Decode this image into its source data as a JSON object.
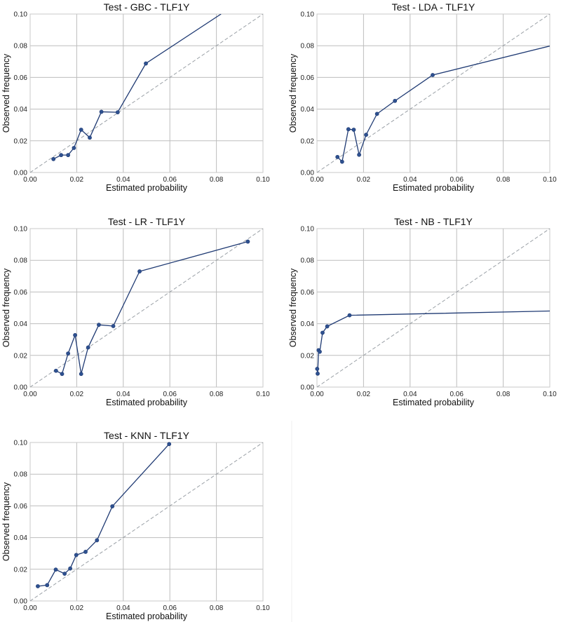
{
  "chart_data": [
    {
      "type": "line",
      "title": "Test - GBC - TLF1Y",
      "xlabel": "Estimated probability",
      "ylabel": "Observed frequency",
      "xlim": [
        0,
        0.1
      ],
      "ylim": [
        0,
        0.1
      ],
      "xticks": [
        "0.00",
        "0.02",
        "0.04",
        "0.06",
        "0.08",
        "0.10"
      ],
      "yticks": [
        "0.00",
        "0.02",
        "0.04",
        "0.06",
        "0.08",
        "0.10"
      ],
      "reference_line": "perfectly calibrated diagonal (dashed)",
      "grid": true,
      "series": [
        {
          "name": "GBC",
          "x": [
            0.01,
            0.0133,
            0.0163,
            0.0188,
            0.0219,
            0.0256,
            0.0306,
            0.0376,
            0.0497
          ],
          "y": [
            0.0085,
            0.011,
            0.011,
            0.0155,
            0.027,
            0.022,
            0.0383,
            0.038,
            0.0688
          ]
        }
      ],
      "series_line_extension": {
        "x": 0.082,
        "y": 0.1
      }
    },
    {
      "type": "line",
      "title": "Test - LDA - TLF1Y",
      "xlabel": "Estimated probability",
      "ylabel": "Observed frequency",
      "xlim": [
        0,
        0.1
      ],
      "ylim": [
        0,
        0.1
      ],
      "xticks": [
        "0.00",
        "0.02",
        "0.04",
        "0.06",
        "0.08",
        "0.10"
      ],
      "yticks": [
        "0.00",
        "0.02",
        "0.04",
        "0.06",
        "0.08",
        "0.10"
      ],
      "reference_line": "perfectly calibrated diagonal (dashed)",
      "grid": true,
      "series": [
        {
          "name": "LDA",
          "x": [
            0.0088,
            0.0108,
            0.0135,
            0.0158,
            0.0181,
            0.0211,
            0.0258,
            0.0335,
            0.0497
          ],
          "y": [
            0.0098,
            0.0068,
            0.0273,
            0.027,
            0.0112,
            0.0238,
            0.037,
            0.0452,
            0.0615
          ]
        }
      ],
      "series_line_extension": {
        "x": 0.1,
        "y": 0.0798
      }
    },
    {
      "type": "line",
      "title": "Test - LR - TLF1Y",
      "xlabel": "Estimated probability",
      "ylabel": "Observed frequency",
      "xlim": [
        0,
        0.1
      ],
      "ylim": [
        0,
        0.1
      ],
      "xticks": [
        "0.00",
        "0.02",
        "0.04",
        "0.06",
        "0.08",
        "0.10"
      ],
      "yticks": [
        "0.00",
        "0.02",
        "0.04",
        "0.06",
        "0.08",
        "0.10"
      ],
      "reference_line": "perfectly calibrated diagonal (dashed)",
      "grid": true,
      "series": [
        {
          "name": "LR",
          "x": [
            0.0111,
            0.0137,
            0.0163,
            0.0193,
            0.0219,
            0.0249,
            0.0295,
            0.0357,
            0.047,
            0.0935
          ],
          "y": [
            0.0103,
            0.0083,
            0.0212,
            0.0328,
            0.0083,
            0.025,
            0.0393,
            0.0385,
            0.073,
            0.0918
          ]
        }
      ]
    },
    {
      "type": "line",
      "title": "Test - NB - TLF1Y",
      "xlabel": "Estimated probability",
      "ylabel": "Observed frequency",
      "xlim": [
        0,
        0.1
      ],
      "ylim": [
        0,
        0.1
      ],
      "xticks": [
        "0.00",
        "0.02",
        "0.04",
        "0.06",
        "0.08",
        "0.10"
      ],
      "yticks": [
        "0.00",
        "0.02",
        "0.04",
        "0.06",
        "0.08",
        "0.10"
      ],
      "reference_line": "perfectly calibrated diagonal (dashed)",
      "grid": true,
      "series": [
        {
          "name": "NB",
          "x": [
            0.0001,
            0.0003,
            0.0007,
            0.0012,
            0.0024,
            0.0044,
            0.014
          ],
          "y": [
            0.0115,
            0.0085,
            0.0233,
            0.0223,
            0.0343,
            0.0383,
            0.0453
          ]
        }
      ],
      "series_line_extension": {
        "x": 0.1,
        "y": 0.048
      }
    },
    {
      "type": "line",
      "title": "Test - KNN - TLF1Y",
      "xlabel": "Estimated probability",
      "ylabel": "Observed frequency",
      "xlim": [
        0,
        0.1
      ],
      "ylim": [
        0,
        0.1
      ],
      "xticks": [
        "0.00",
        "0.02",
        "0.04",
        "0.06",
        "0.08",
        "0.10"
      ],
      "yticks": [
        "0.00",
        "0.02",
        "0.04",
        "0.06",
        "0.08",
        "0.10"
      ],
      "reference_line": "perfectly calibrated diagonal (dashed)",
      "grid": true,
      "series": [
        {
          "name": "KNN",
          "x": [
            0.0033,
            0.0073,
            0.011,
            0.0148,
            0.0172,
            0.0198,
            0.0238,
            0.0287,
            0.0353,
            0.0597
          ],
          "y": [
            0.0093,
            0.01,
            0.0198,
            0.0172,
            0.0205,
            0.029,
            0.031,
            0.0383,
            0.0597,
            0.099
          ]
        }
      ]
    }
  ],
  "colors": {
    "series": "#1f3a73",
    "marker": "#2e5190",
    "grid": "#bdbdbd",
    "reference": "#9aa0a6",
    "frame": "#c8c8c8"
  }
}
